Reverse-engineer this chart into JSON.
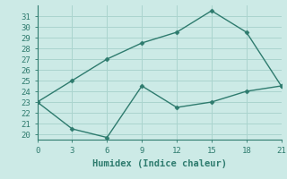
{
  "line1_x": [
    0,
    3,
    6,
    9,
    12,
    15,
    18,
    21
  ],
  "line1_y": [
    23,
    25,
    27,
    28.5,
    29.5,
    31.5,
    29.5,
    24.5
  ],
  "line2_x": [
    0,
    3,
    6,
    9,
    12,
    15,
    18,
    21
  ],
  "line2_y": [
    23,
    20.5,
    19.7,
    24.5,
    22.5,
    23,
    24,
    24.5
  ],
  "line_color": "#2e7b6e",
  "bg_color": "#cceae6",
  "grid_color": "#aad4ce",
  "xlabel": "Humidex (Indice chaleur)",
  "xlim": [
    0,
    21
  ],
  "ylim": [
    19.5,
    32
  ],
  "yticks": [
    20,
    21,
    22,
    23,
    24,
    25,
    26,
    27,
    28,
    29,
    30,
    31
  ],
  "xticks": [
    0,
    3,
    6,
    9,
    12,
    15,
    18,
    21
  ],
  "marker": "D",
  "marker_size": 2.5,
  "line_width": 1.0,
  "font_size": 6.5,
  "xlabel_fontsize": 7.5
}
